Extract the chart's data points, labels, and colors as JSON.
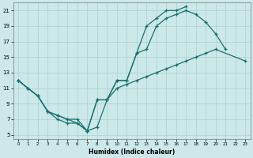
{
  "xlabel": "Humidex (Indice chaleur)",
  "background_color": "#cce8e8",
  "grid_color": "#aad0d0",
  "line_color": "#1a7070",
  "xlim": [
    -0.5,
    23.5
  ],
  "ylim": [
    4.5,
    22.0
  ],
  "xticks": [
    0,
    1,
    2,
    3,
    4,
    5,
    6,
    7,
    8,
    9,
    10,
    11,
    12,
    13,
    14,
    15,
    16,
    17,
    18,
    19,
    20,
    21,
    22,
    23
  ],
  "yticks": [
    5,
    7,
    9,
    11,
    13,
    15,
    17,
    19,
    21
  ],
  "line1_x": [
    0,
    1,
    2,
    3,
    4,
    5,
    6,
    7,
    8,
    9,
    10,
    11,
    12,
    13,
    14,
    15,
    16,
    17,
    18,
    19,
    20,
    21
  ],
  "line1_y": [
    12.0,
    11.0,
    10.0,
    8.0,
    7.0,
    6.5,
    6.5,
    5.5,
    9.5,
    9.5,
    12.0,
    12.0,
    15.5,
    16.0,
    19.0,
    20.0,
    20.5,
    21.0,
    20.5,
    19.5,
    18.0,
    16.0
  ],
  "line2_x": [
    0,
    1,
    2,
    3,
    4,
    5,
    6,
    7,
    8,
    9,
    10,
    11,
    12,
    13,
    14,
    15,
    16,
    17
  ],
  "line2_y": [
    12.0,
    11.0,
    10.0,
    8.0,
    7.5,
    7.0,
    7.0,
    5.5,
    9.5,
    9.5,
    12.0,
    12.0,
    15.5,
    19.0,
    20.0,
    21.0,
    21.0,
    21.5
  ],
  "line3_x": [
    0,
    1,
    2,
    3,
    4,
    5,
    6,
    7,
    8,
    9,
    10,
    11,
    12,
    13,
    14,
    15,
    16,
    17,
    18,
    19,
    20,
    23
  ],
  "line3_y": [
    12.0,
    11.0,
    10.0,
    8.0,
    7.5,
    7.0,
    6.5,
    5.5,
    6.0,
    9.5,
    11.0,
    11.5,
    12.0,
    12.5,
    13.0,
    13.5,
    14.0,
    14.5,
    15.0,
    15.5,
    16.0,
    14.5
  ]
}
